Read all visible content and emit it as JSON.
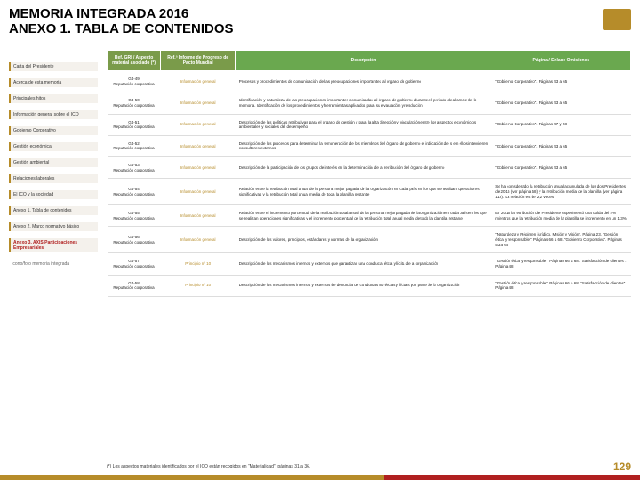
{
  "header": {
    "title_line1": "MEMORIA INTEGRADA 2016",
    "title_line2": "ANEXO 1. TABLA DE CONTENIDOS"
  },
  "sidebar": {
    "items": [
      {
        "label": "Carta del Presidente",
        "style": "box"
      },
      {
        "label": "Acerca de esta memoria",
        "style": "box"
      },
      {
        "label": "Principales hitos",
        "style": "box"
      },
      {
        "label": "Información general sobre el ICO",
        "style": "box"
      },
      {
        "label": "Gobierno Corporativo",
        "style": "box"
      },
      {
        "label": "Gestión económica",
        "style": "box"
      },
      {
        "label": "Gestión ambiental",
        "style": "box"
      },
      {
        "label": "Relaciones laborales",
        "style": "box"
      },
      {
        "label": "El ICO y la sociedad",
        "style": "box"
      },
      {
        "label": "Anexo 1. Tabla de contenidos",
        "style": "box"
      },
      {
        "label": "Anexo 2. Marco normativo básico",
        "style": "box"
      },
      {
        "label": "Anexo 3. AXIS Participaciones Empresariales",
        "style": "red"
      },
      {
        "label": "Icono/foto memoria integrada",
        "style": "plain"
      }
    ]
  },
  "table": {
    "headers": [
      "Ref. GRI / Aspecto material asociado (*)",
      "Ref.ª Informe de Progreso de Pacto Mundial",
      "Descripción",
      "Página / Enlace Omisiones"
    ],
    "rows": [
      {
        "ref": "G4-49\nReputación corporativa",
        "inf": "Información general",
        "desc": "Procesos y procedimientos de comunicación de las preocupaciones importantes al órgano de gobierno",
        "pag": "“Gobierno Corporativo”. Páginas 53 a 65"
      },
      {
        "ref": "G4-50\nReputación corporativa",
        "inf": "Información general",
        "desc": "Identificación y naturaleza de las preocupaciones importantes comunicadas al órgano de gobierno durante el periodo de alcance de la memoria. Identificación de los procedimientos y herramientas aplicados para su evaluación y resolución",
        "pag": "“Gobierno Corporativo”. Páginas 53 a 65"
      },
      {
        "ref": "G4-51\nReputación corporativa",
        "inf": "Información general",
        "desc": "Descripción de las políticas retributivas para el órgano de gestión y para la alta dirección y vinculación entre los aspectos económicos, ambientales y sociales del desempeño",
        "pag": "“Gobierno Corporativo”. Páginas 57 y 58"
      },
      {
        "ref": "G4-52\nReputación corporativa",
        "inf": "Información general",
        "desc": "Descripción de los procesos para determinar la remuneración de los miembros del órgano de gobierno e indicación de si en ellos intervienen consultores externos",
        "pag": "“Gobierno Corporativo”. Páginas 53 a 65"
      },
      {
        "ref": "G4-53\nReputación corporativa",
        "inf": "Información general",
        "desc": "Descripción de la participación de los grupos de interés en la determinación de la retribución del órgano de gobierno",
        "pag": "“Gobierno Corporativo”. Páginas 53 a 65"
      },
      {
        "ref": "G4-54\nReputación corporativa",
        "inf": "Información general",
        "desc": "Relación entre la retribución total anual de la persona mejor pagada de la organización en cada país en los que se realizan operaciones significativas y la retribución total anual media de toda la plantilla restante",
        "pag": "Se ha considerado la retribución anual acumulada de los dos Presidentes de 2016 (ver página 58) y la retribución media de la plantilla (ver página 112). La relación es de 2,2 veces"
      },
      {
        "ref": "G4-55\nReputación corporativa",
        "inf": "Información general",
        "desc": "Relación entre el incremento porcentual de la retribución total anual de la persona mejor pagada de la organización en cada país en los que se realizan operaciones significativas y el incremento porcentual de la retribución total anual media de toda la plantilla restante",
        "pag": "En 2016 la retribución del Presidente experimentó una caída del 4% mientras que la retribución media de la plantilla se incrementó en un 1,3%"
      },
      {
        "ref": "G4-56\nReputación corporativa",
        "inf": "Información general",
        "desc": "Descripción de los valores, principios, estándares y normas de la organización",
        "pag": "“Naturaleza y Régimen jurídico. Misión y Visión”. Página 23. “Gestión ética y responsable”. Páginas 66 a 68. “Gobierno Corporativo”. Páginas 53 a 65"
      },
      {
        "ref": "G4-57\nReputación corporativa",
        "inf": "Principio nº 10",
        "desc": "Descripción de los mecanismos internos y externos que garantizan una conducta ética y lícita de la organización",
        "pag": "“Gestión ética y responsable”. Páginas 66 a 68. “Satisfacción de clientes”. Página 48"
      },
      {
        "ref": "G4-58\nReputación corporativa",
        "inf": "Principio nº 10",
        "desc": "Descripción de los mecanismos internos y externos de denuncia de conductas no éticas y lícitas por parte de la organización",
        "pag": "“Gestión ética y responsable”. Páginas 66 a 68. “Satisfacción de clientes”. Página 48"
      }
    ]
  },
  "footnote": "(*) Los aspectos materiales identificados por el ICO están recogidos en “Materialidad”, páginas 31 a 36.",
  "page_number": "129",
  "colors": {
    "brand_gold": "#b68c2a",
    "brand_red": "#b02020",
    "header_green": "#6aa84f"
  }
}
